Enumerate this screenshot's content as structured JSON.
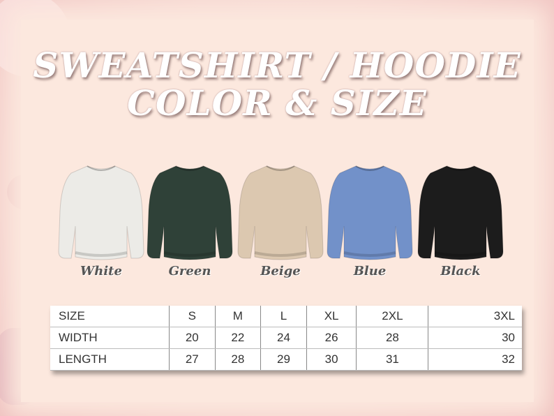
{
  "title": {
    "line1": "SWEATSHIRT / HOODIE",
    "line2": "COLOR & SIZE"
  },
  "colors": [
    {
      "label": "White",
      "hex": "#ecebe7"
    },
    {
      "label": "Green",
      "hex": "#2f4138"
    },
    {
      "label": "Beige",
      "hex": "#dcc8b0"
    },
    {
      "label": "Blue",
      "hex": "#7291c9"
    },
    {
      "label": "Black",
      "hex": "#1c1c1c"
    }
  ],
  "size_table": {
    "headers": [
      "SIZE",
      "S",
      "M",
      "L",
      "XL",
      "2XL",
      "3XL"
    ],
    "rows": [
      [
        "WIDTH",
        "20",
        "22",
        "24",
        "26",
        "28",
        "30"
      ],
      [
        "LENGTH",
        "27",
        "28",
        "29",
        "30",
        "31",
        "32"
      ]
    ]
  }
}
